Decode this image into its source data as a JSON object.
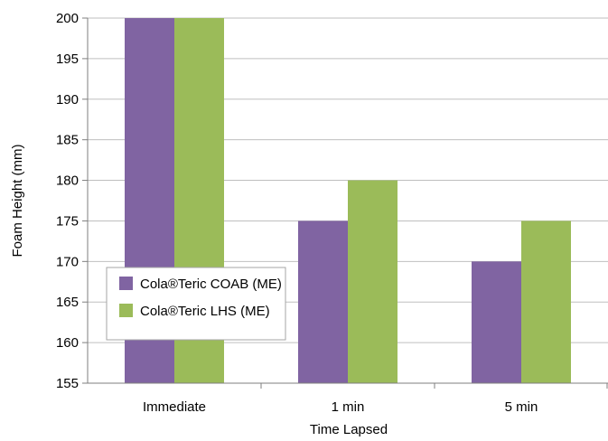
{
  "chart_data": {
    "type": "bar",
    "title": "",
    "xlabel": "Time Lapsed",
    "ylabel": "Foam Height (mm)",
    "categories": [
      "Immediate",
      "1 min",
      "5 min"
    ],
    "series": [
      {
        "name": "Cola®Teric COAB (ME)",
        "values": [
          200,
          175,
          170
        ],
        "color": "#8064A2"
      },
      {
        "name": "Cola®Teric LHS (ME)",
        "values": [
          200,
          180,
          175
        ],
        "color": "#9BBB59"
      }
    ],
    "ylim": [
      155,
      200
    ],
    "yticks": [
      155,
      160,
      165,
      170,
      175,
      180,
      185,
      190,
      195,
      200
    ],
    "grid": true,
    "legend_position": "lower-left",
    "colors": {
      "grid": "#BFBFBF",
      "axis": "#7F7F7F",
      "plot_bg": "#F2F2F2"
    }
  }
}
